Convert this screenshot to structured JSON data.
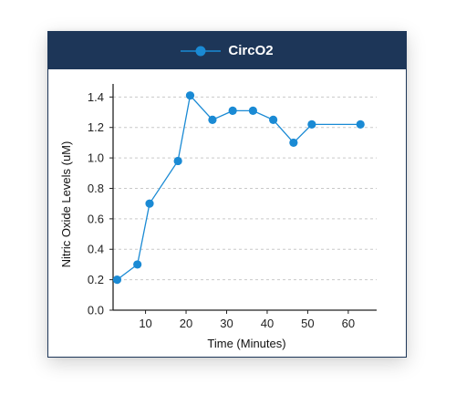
{
  "chart_data": {
    "type": "line",
    "legend": {
      "position": "top"
    },
    "series": [
      {
        "name": "CircO2",
        "color": "#1a8ad4",
        "points": [
          {
            "x": 3,
            "y": 0.2
          },
          {
            "x": 8,
            "y": 0.3
          },
          {
            "x": 11,
            "y": 0.7
          },
          {
            "x": 18,
            "y": 0.98
          },
          {
            "x": 21,
            "y": 1.41
          },
          {
            "x": 26.5,
            "y": 1.25
          },
          {
            "x": 31.5,
            "y": 1.31
          },
          {
            "x": 36.5,
            "y": 1.31
          },
          {
            "x": 41.5,
            "y": 1.25
          },
          {
            "x": 46.5,
            "y": 1.1
          },
          {
            "x": 51,
            "y": 1.22
          },
          {
            "x": 63,
            "y": 1.22
          }
        ]
      }
    ],
    "xlabel": "Time (Minutes)",
    "ylabel": "Nitric Oxide Levels (uM)",
    "xlim": [
      2,
      67
    ],
    "ylim": [
      0,
      1.45
    ],
    "xticks": [
      10,
      20,
      30,
      40,
      50,
      60
    ],
    "yticks": [
      0.0,
      0.2,
      0.4,
      0.6,
      0.8,
      1.0,
      1.2,
      1.4
    ],
    "ytick_labels": [
      "0.0",
      "0.2",
      "0.4",
      "0.6",
      "0.8",
      "1.0",
      "1.2",
      "1.4"
    ],
    "grid": {
      "horizontal": true,
      "style": "dashed",
      "color": "#c9c9c9"
    },
    "header_color": "#1d3658"
  }
}
